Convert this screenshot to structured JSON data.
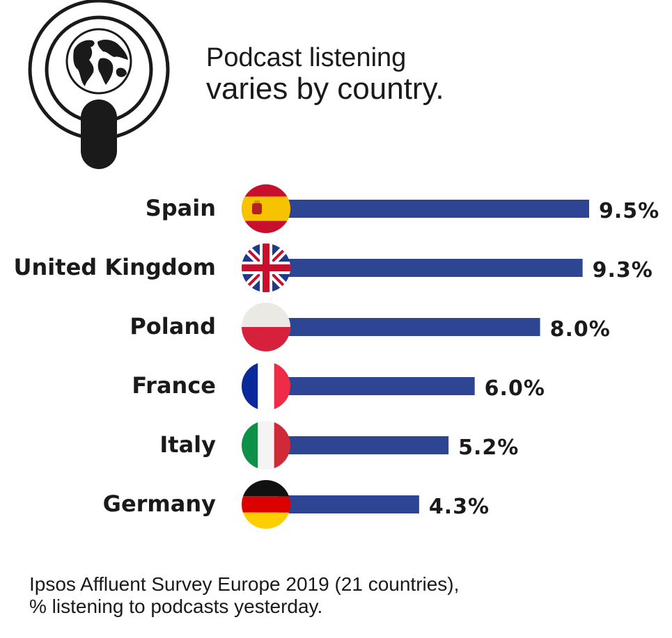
{
  "title": {
    "line1": "Podcast listening",
    "line2": "varies by country."
  },
  "icons": {
    "logo": "podcast-globe-icon"
  },
  "colors": {
    "bar": "#2e4593",
    "text": "#1a1a1a"
  },
  "chart_data": {
    "type": "bar",
    "orientation": "horizontal",
    "categories": [
      "Spain",
      "United Kingdom",
      "Poland",
      "France",
      "Italy",
      "Germany"
    ],
    "values": [
      9.5,
      9.3,
      8.0,
      6.0,
      5.2,
      4.3
    ],
    "value_labels": [
      "9.5%",
      "9.3%",
      "8.0%",
      "6.0%",
      "5.2%",
      "4.3%"
    ],
    "flags": [
      "spain-flag-icon",
      "uk-flag-icon",
      "poland-flag-icon",
      "france-flag-icon",
      "italy-flag-icon",
      "germany-flag-icon"
    ],
    "xlim": [
      0,
      9.5
    ]
  },
  "footnote": {
    "line1": "Ipsos Affluent Survey Europe 2019 (21 countries),",
    "line2": "% listening to podcasts yesterday."
  }
}
